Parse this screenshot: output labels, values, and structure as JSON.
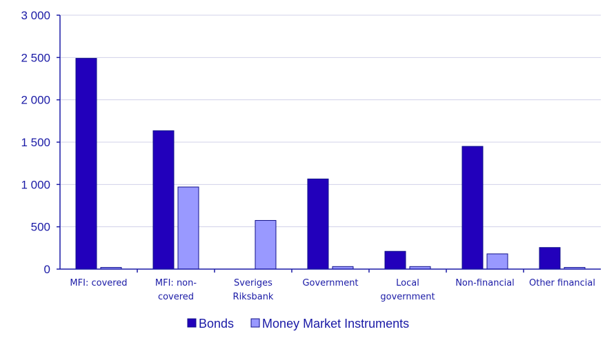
{
  "chart_data": {
    "type": "bar",
    "categories": [
      [
        "MFI: covered"
      ],
      [
        "MFI: non-",
        "covered"
      ],
      [
        "Sveriges",
        "Riksbank"
      ],
      [
        "Government"
      ],
      [
        "Local",
        "government"
      ],
      [
        "Non-financial"
      ],
      [
        "Other financial"
      ]
    ],
    "series": [
      {
        "name": "Bonds",
        "color": "#2200bb",
        "values": [
          2490,
          1635,
          0,
          1065,
          210,
          1450,
          255
        ]
      },
      {
        "name": "Money Market Instruments",
        "color": "#9999ff",
        "values": [
          20,
          970,
          575,
          30,
          30,
          180,
          20
        ]
      }
    ],
    "ylim": [
      0,
      3000
    ],
    "yticks": [
      0,
      500,
      1000,
      1500,
      2000,
      2500,
      3000
    ],
    "ytick_labels": [
      "0",
      "500",
      "1 000",
      "1 500",
      "2 000",
      "2 500",
      "3 000"
    ],
    "grid": true,
    "legend_position": "bottom-center",
    "axis_color": "#1a1aa6"
  }
}
